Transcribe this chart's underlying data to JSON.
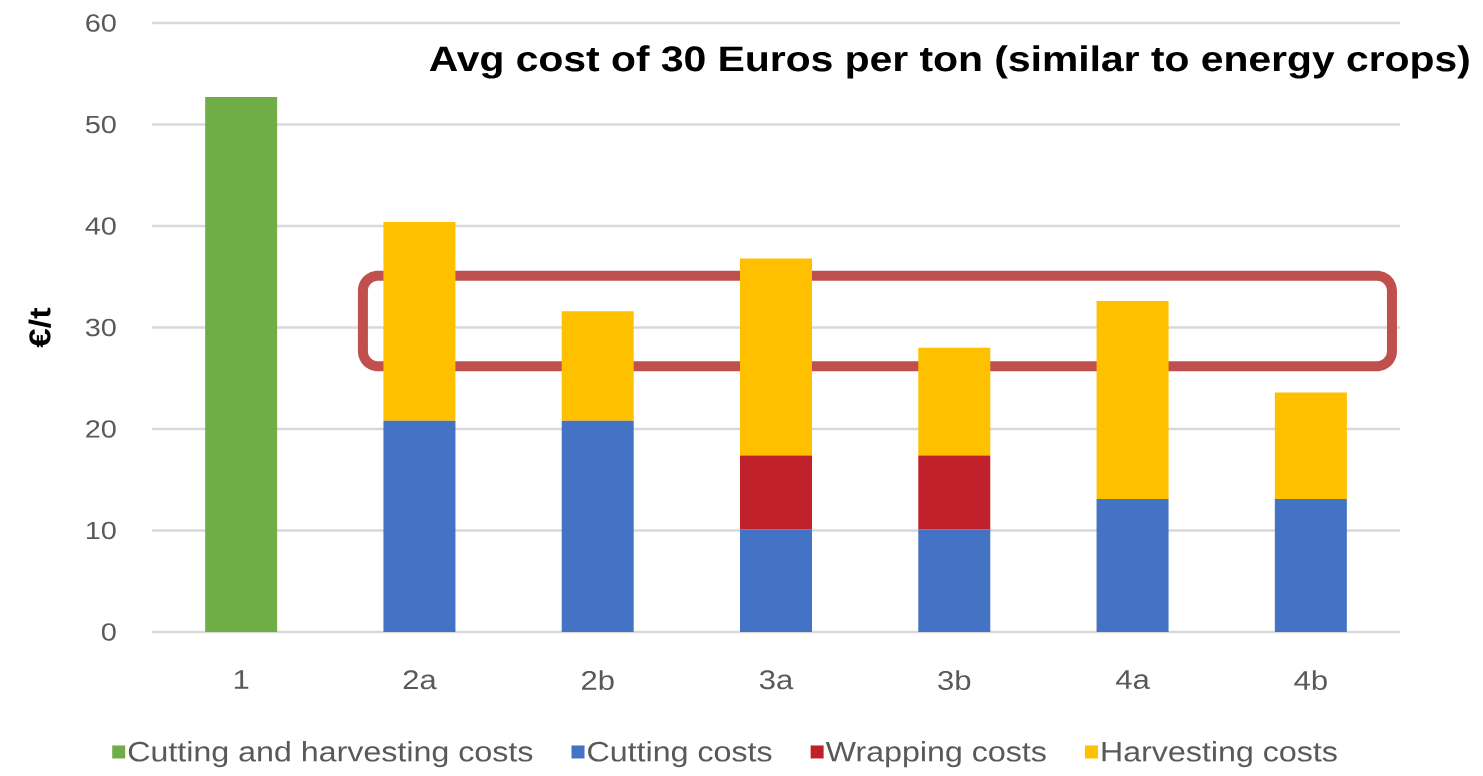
{
  "chart_data": {
    "type": "bar",
    "stacked": true,
    "categories": [
      "1",
      "2a",
      "2b",
      "3a",
      "3b",
      "4a",
      "4b"
    ],
    "ylabel": "€/t",
    "series": [
      {
        "name": "Cutting and harvesting costs",
        "color": "#70ad47",
        "values": [
          52.7,
          null,
          null,
          null,
          null,
          null,
          null
        ]
      },
      {
        "name": "Cutting costs",
        "color": "#4472c4",
        "values": [
          null,
          20.8,
          20.8,
          10.1,
          10.1,
          13.1,
          13.1
        ]
      },
      {
        "name": "Wrapping costs",
        "color": "#c0202a",
        "values": [
          null,
          null,
          null,
          7.3,
          7.3,
          null,
          null
        ]
      },
      {
        "name": "Harvesting costs",
        "color": "#ffc000",
        "values": [
          null,
          19.6,
          10.8,
          19.4,
          10.6,
          19.5,
          10.5
        ]
      }
    ],
    "ylim": [
      0,
      60
    ],
    "yticks": [
      0,
      10,
      20,
      30,
      40,
      50,
      60
    ],
    "grid": "y",
    "legend": "bottom",
    "bands": [
      {
        "axis": "y",
        "from": 25.7,
        "to": 35.6,
        "color": "#c0504d"
      }
    ],
    "annotations": [
      "Avg cost of 30 Euros per ton (similar to energy crops)"
    ]
  }
}
